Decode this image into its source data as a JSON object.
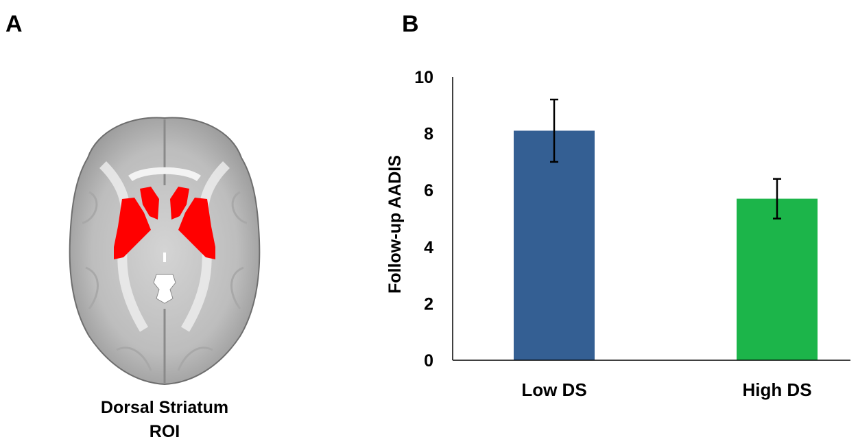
{
  "panels": {
    "a_label": "A",
    "b_label": "B"
  },
  "brain": {
    "caption_line1": "Dorsal Striatum",
    "caption_line2": "ROI",
    "roi_color": "#ff0000"
  },
  "chart_data": {
    "type": "bar",
    "categories": [
      "Low DS",
      "High DS"
    ],
    "values": [
      8.1,
      5.7
    ],
    "error": [
      1.1,
      0.7
    ],
    "colors": [
      "#345f93",
      "#1cb54a"
    ],
    "title": "",
    "xlabel": "",
    "ylabel": "Follow-up AADIS",
    "ylim": [
      0,
      10
    ],
    "yticks": [
      "0",
      "2",
      "4",
      "6",
      "8",
      "10"
    ],
    "grid": false
  }
}
